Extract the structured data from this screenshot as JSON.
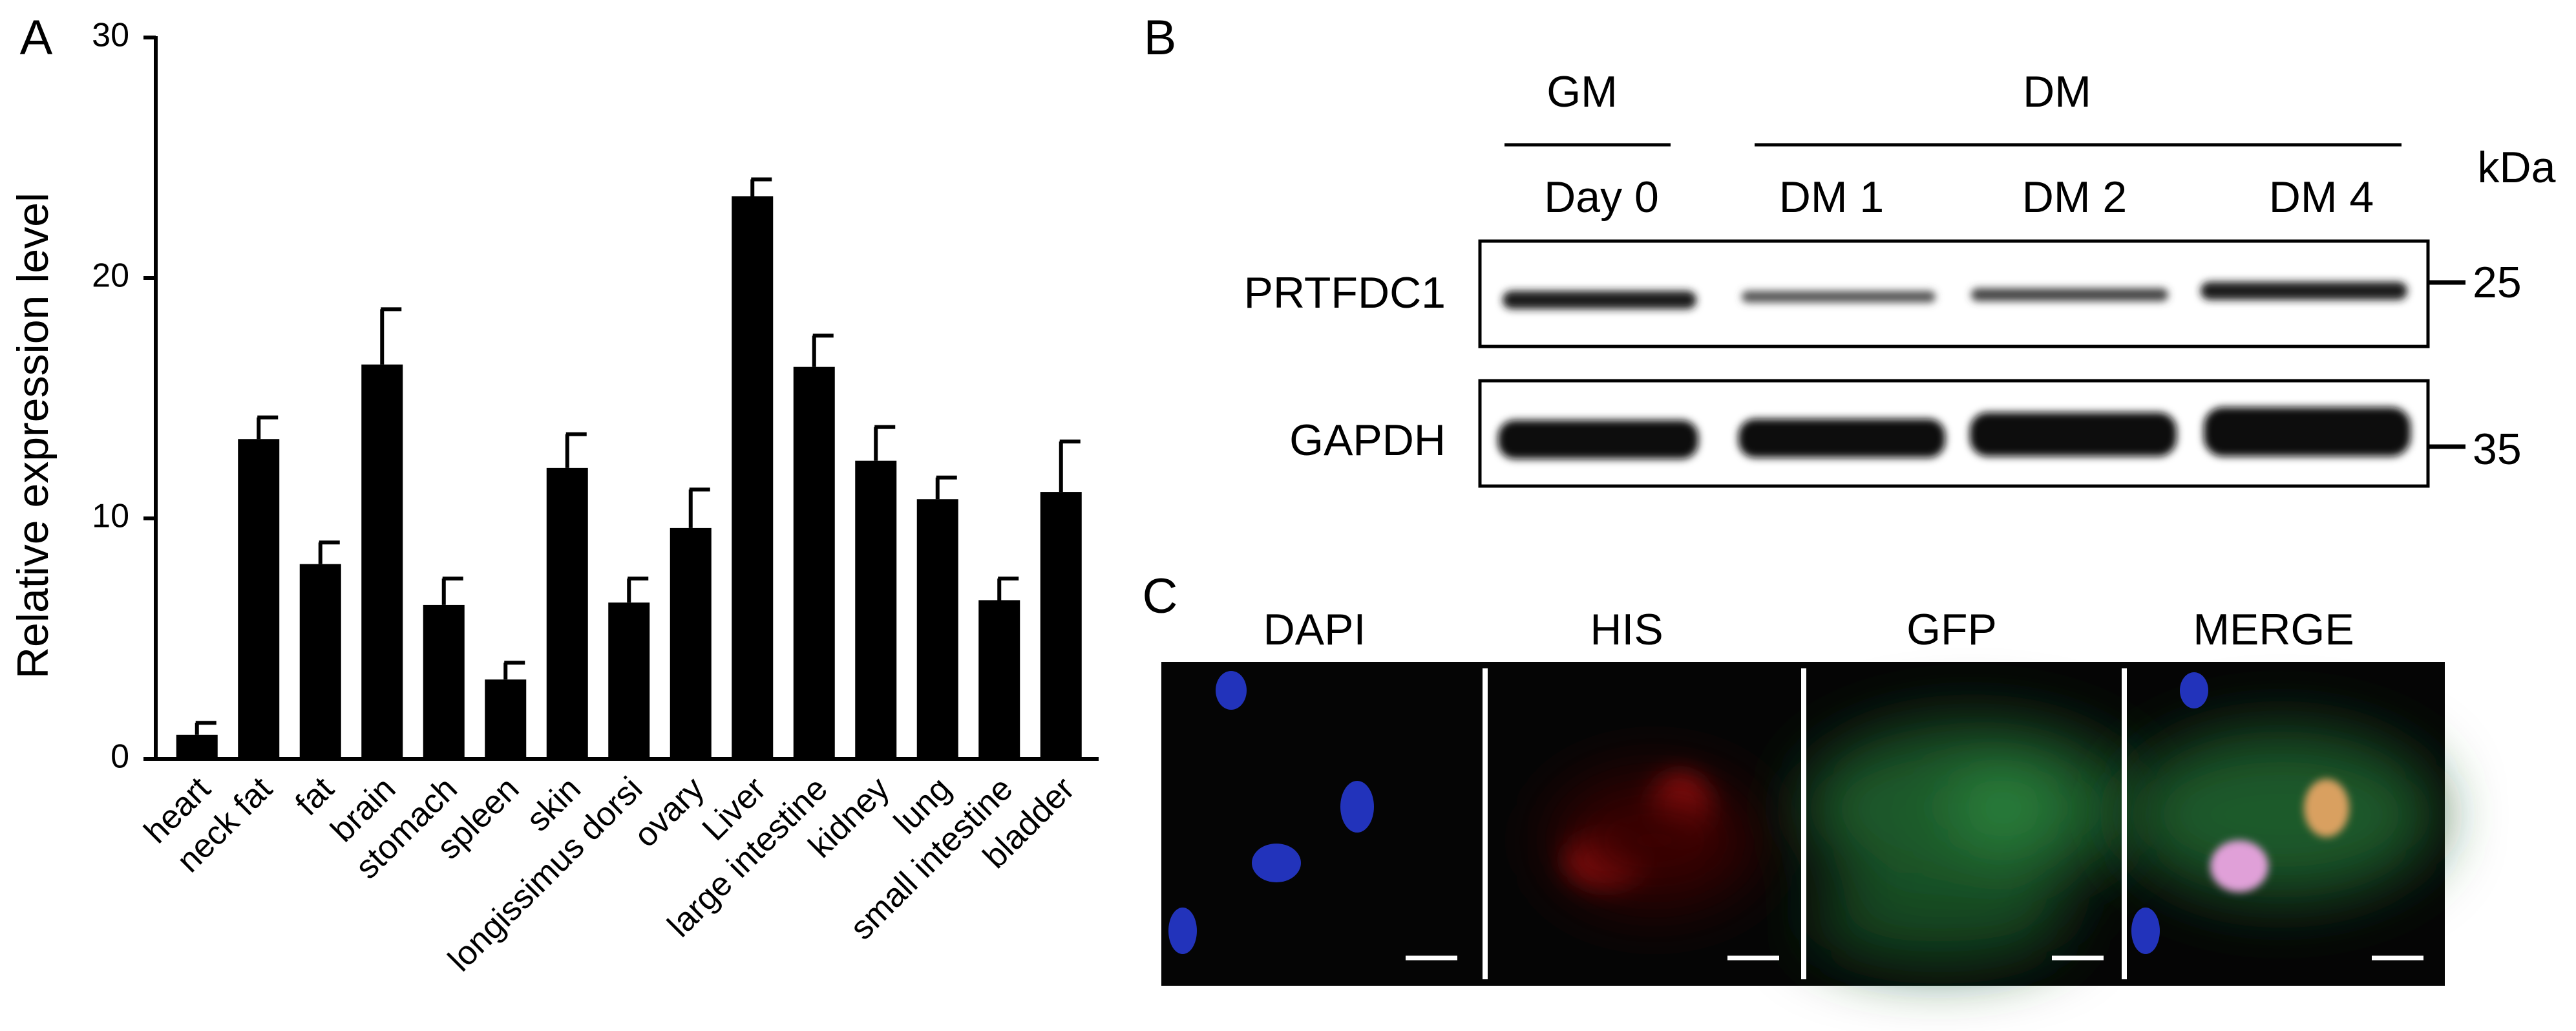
{
  "chart_data": {
    "type": "bar",
    "panel_label": "A",
    "ylabel": "Relative expression level",
    "categories": [
      "heart",
      "neck fat",
      "fat",
      "brain",
      "stomach",
      "spleen",
      "skin",
      "longissimus dorsi",
      "ovary",
      "Liver",
      "large intestine",
      "kidney",
      "lung",
      "small intestine",
      "bladder"
    ],
    "values": [
      1.0,
      13.3,
      8.1,
      16.4,
      6.4,
      3.3,
      12.1,
      6.5,
      9.6,
      23.4,
      16.3,
      12.4,
      10.8,
      6.6,
      11.1
    ],
    "errors": [
      0.5,
      0.9,
      0.9,
      2.3,
      1.1,
      0.7,
      1.4,
      1.0,
      1.6,
      0.7,
      1.3,
      1.4,
      0.9,
      0.9,
      2.1
    ],
    "color": "#000000",
    "ylim": [
      0,
      30
    ],
    "yticks": [
      0,
      10,
      20,
      30
    ]
  },
  "panel_b": {
    "label": "B",
    "groups": [
      "GM",
      "DM"
    ],
    "lanes": [
      "Day 0",
      "DM 1",
      "DM 2",
      "DM 4"
    ],
    "unit": "kDa",
    "proteins": [
      "PRTFDC1",
      "GAPDH"
    ],
    "markers": [
      "25",
      "35"
    ]
  },
  "panel_c": {
    "label": "C",
    "channels": [
      {
        "name": "DAPI",
        "color": "#1c2c8c"
      },
      {
        "name": "HIS",
        "color": "#e8212b"
      },
      {
        "name": "GFP",
        "color": "#1fa64a"
      },
      {
        "name": "MERGE",
        "color": "#000000"
      }
    ]
  }
}
